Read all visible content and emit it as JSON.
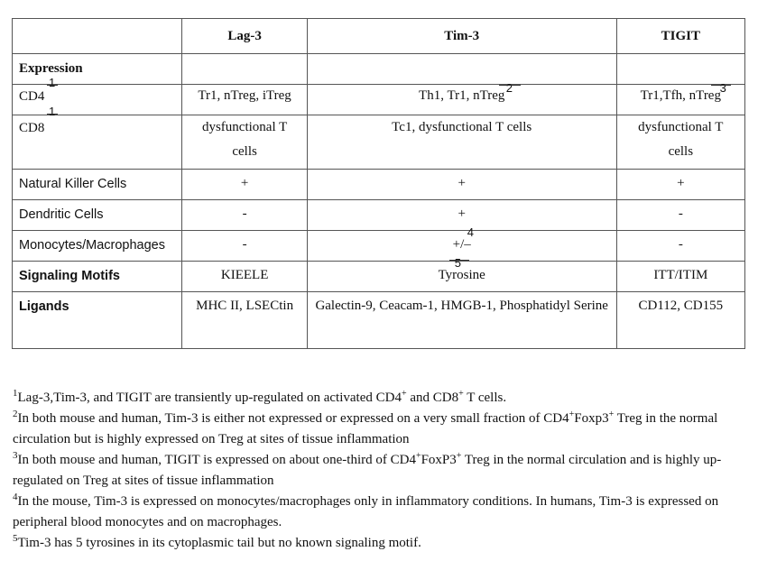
{
  "table": {
    "headers": [
      "",
      "Lag-3",
      "Tim-3",
      "TIGIT"
    ],
    "rows": [
      {
        "label": "Expression",
        "label_sup": "",
        "bold": true,
        "cells": [
          "",
          "",
          ""
        ]
      },
      {
        "label": "CD4",
        "label_sup": "1",
        "bold": false,
        "cells": [
          "Tr1, nTreg, iTreg",
          "Th1, Tr1, nTreg",
          "Tr1,Tfh, nTreg"
        ]
      },
      {
        "label": "CD8",
        "label_sup": "1",
        "bold": false,
        "cells": [
          "dysfunctional T cells",
          "Tc1, dysfunctional T cells",
          "dysfunctional T cells"
        ]
      },
      {
        "label": "Natural Killer Cells",
        "label_sup": "",
        "bold": false,
        "cells": [
          "+",
          "+",
          "+"
        ]
      },
      {
        "label": "Dendritic Cells",
        "label_sup": "",
        "bold": false,
        "cells": [
          "-",
          "+",
          "-"
        ]
      },
      {
        "label": "Monocytes/Macrophages",
        "label_sup": "",
        "bold": false,
        "cells": [
          "-",
          "+/–",
          "-"
        ]
      },
      {
        "label": "Signaling Motifs",
        "label_sup": "",
        "bold": true,
        "cells": [
          "KIEELE",
          "Tyrosine",
          "ITT/ITIM"
        ]
      },
      {
        "label": "Ligands",
        "label_sup": "",
        "bold": true,
        "cells": [
          "MHC II, LSECtin",
          "Galectin-9, Ceacam-1, HMGB-1, Phosphatidyl Serine",
          "CD112, CD155"
        ]
      }
    ],
    "cell_sups": {
      "tim3_cd4": "2",
      "tigit_cd4": "3",
      "tim3_dc": "4",
      "tim3_mono": "5"
    }
  },
  "notes": {
    "n1": {
      "num": "1",
      "a": "Lag-3,Tim-3, and TIGIT are transiently up-regulated on activated CD4",
      "s1": "+",
      "b": " and CD8",
      "s2": "+",
      "c": " T cells."
    },
    "n2": {
      "num": "2",
      "a": "In both mouse and human, Tim-3 is either not expressed or expressed on a very small fraction of CD4",
      "s1": "+",
      "b": "Foxp3",
      "s2": "+",
      "c": " Treg in the normal circulation but is highly expressed on Treg at sites of tissue inflammation"
    },
    "n3": {
      "num": "3",
      "a": "In both mouse and human, TIGIT is expressed on about one-third of CD4",
      "s1": "+",
      "b": "FoxP3",
      "s2": "+",
      "c": " Treg in the normal circulation and is highly up-regulated on Treg at sites of tissue inflammation"
    },
    "n4": {
      "num": "4",
      "text": "In the mouse, Tim-3 is expressed on monocytes/macrophages only in inflammatory conditions. In humans, Tim-3 is expressed on peripheral blood monocytes and on macrophages."
    },
    "n5": {
      "num": "5",
      "text": "Tim-3 has 5 tyrosines in its cytoplasmic tail but no known signaling motif."
    }
  }
}
